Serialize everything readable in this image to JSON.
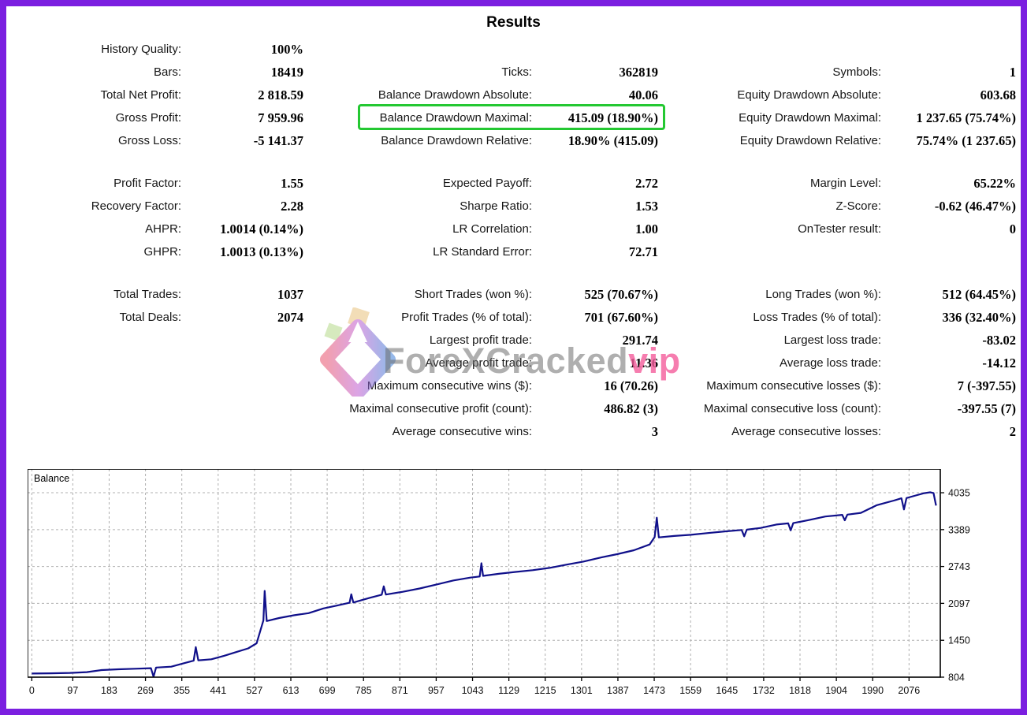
{
  "page": {
    "title": "Results",
    "frame_border_color": "#7b1fe0",
    "highlight_color": "#24c832"
  },
  "stats": {
    "highlighted_metric": "Balance Drawdown Maximal:",
    "highlighted_value": "415.09 (18.90%)",
    "rows": [
      [
        "History Quality:",
        "100%",
        "",
        "",
        "",
        ""
      ],
      [
        "Bars:",
        "18419",
        "Ticks:",
        "362819",
        "Symbols:",
        "1"
      ],
      [
        "Total Net Profit:",
        "2 818.59",
        "Balance Drawdown Absolute:",
        "40.06",
        "Equity Drawdown Absolute:",
        "603.68"
      ],
      [
        "Gross Profit:",
        "7 959.96",
        "Balance Drawdown Maximal:",
        "415.09 (18.90%)",
        "Equity Drawdown Maximal:",
        "1 237.65 (75.74%)"
      ],
      [
        "Gross Loss:",
        "-5 141.37",
        "Balance Drawdown Relative:",
        "18.90% (415.09)",
        "Equity Drawdown Relative:",
        "75.74% (1 237.65)"
      ],
      null,
      [
        "Profit Factor:",
        "1.55",
        "Expected Payoff:",
        "2.72",
        "Margin Level:",
        "65.22%"
      ],
      [
        "Recovery Factor:",
        "2.28",
        "Sharpe Ratio:",
        "1.53",
        "Z-Score:",
        "-0.62 (46.47%)"
      ],
      [
        "AHPR:",
        "1.0014 (0.14%)",
        "LR Correlation:",
        "1.00",
        "OnTester result:",
        "0"
      ],
      [
        "GHPR:",
        "1.0013 (0.13%)",
        "LR Standard Error:",
        "72.71",
        "",
        ""
      ],
      null,
      [
        "Total Trades:",
        "1037",
        "Short Trades (won %):",
        "525 (70.67%)",
        "Long Trades (won %):",
        "512 (64.45%)"
      ],
      [
        "Total Deals:",
        "2074",
        "Profit Trades (% of total):",
        "701 (67.60%)",
        "Loss Trades (% of total):",
        "336 (32.40%)"
      ],
      [
        "",
        "",
        "Largest profit trade:",
        "291.74",
        "Largest loss trade:",
        "-83.02"
      ],
      [
        "",
        "",
        "Average profit trade:",
        "11.36",
        "Average loss trade:",
        "-14.12"
      ],
      [
        "",
        "",
        "Maximum consecutive wins ($):",
        "16 (70.26)",
        "Maximum consecutive losses ($):",
        "7 (-397.55)"
      ],
      [
        "",
        "",
        "Maximal consecutive profit (count):",
        "486.82 (3)",
        "Maximal consecutive loss (count):",
        "-397.55 (7)"
      ],
      [
        "",
        "",
        "Average consecutive wins:",
        "3",
        "Average consecutive losses:",
        "2"
      ]
    ]
  },
  "watermark": {
    "brand": "ForeXCracked",
    "suffix": "vip",
    "brand_color": "#6e6e6e",
    "suffix_color": "#f45d9b"
  },
  "chart_data": {
    "type": "line",
    "title": "Balance",
    "legend_position": "top-left-inside",
    "grid": true,
    "line_color": "#10108a",
    "grid_color": "#b0b0b0",
    "axis_color": "#000000",
    "x_ticks": [
      0,
      97,
      183,
      269,
      355,
      441,
      527,
      613,
      699,
      785,
      871,
      957,
      1043,
      1129,
      1215,
      1301,
      1387,
      1473,
      1559,
      1645,
      1732,
      1818,
      1904,
      1990,
      2076
    ],
    "y_ticks": [
      804,
      1450,
      2097,
      2743,
      3389,
      4035
    ],
    "x_range": [
      -10,
      2150
    ],
    "y_range": [
      804,
      4450
    ],
    "xlabel": "",
    "ylabel": "",
    "series": [
      {
        "name": "Balance",
        "points": [
          [
            0,
            868
          ],
          [
            45,
            872
          ],
          [
            90,
            878
          ],
          [
            130,
            893
          ],
          [
            165,
            928
          ],
          [
            205,
            942
          ],
          [
            245,
            952
          ],
          [
            282,
            962
          ],
          [
            288,
            812
          ],
          [
            294,
            972
          ],
          [
            330,
            988
          ],
          [
            360,
            1048
          ],
          [
            383,
            1092
          ],
          [
            388,
            1330
          ],
          [
            394,
            1098
          ],
          [
            425,
            1118
          ],
          [
            455,
            1178
          ],
          [
            485,
            1248
          ],
          [
            512,
            1308
          ],
          [
            532,
            1398
          ],
          [
            548,
            1800
          ],
          [
            551,
            2315
          ],
          [
            556,
            1788
          ],
          [
            585,
            1840
          ],
          [
            620,
            1888
          ],
          [
            655,
            1925
          ],
          [
            690,
            2008
          ],
          [
            722,
            2058
          ],
          [
            752,
            2108
          ],
          [
            756,
            2255
          ],
          [
            761,
            2112
          ],
          [
            800,
            2195
          ],
          [
            828,
            2248
          ],
          [
            833,
            2395
          ],
          [
            838,
            2252
          ],
          [
            878,
            2300
          ],
          [
            918,
            2358
          ],
          [
            958,
            2428
          ],
          [
            998,
            2498
          ],
          [
            1038,
            2548
          ],
          [
            1060,
            2568
          ],
          [
            1064,
            2800
          ],
          [
            1068,
            2578
          ],
          [
            1105,
            2615
          ],
          [
            1145,
            2648
          ],
          [
            1185,
            2678
          ],
          [
            1225,
            2718
          ],
          [
            1265,
            2775
          ],
          [
            1305,
            2828
          ],
          [
            1345,
            2898
          ],
          [
            1385,
            2958
          ],
          [
            1425,
            3028
          ],
          [
            1462,
            3128
          ],
          [
            1474,
            3258
          ],
          [
            1479,
            3598
          ],
          [
            1484,
            3252
          ],
          [
            1520,
            3278
          ],
          [
            1560,
            3298
          ],
          [
            1600,
            3328
          ],
          [
            1640,
            3358
          ],
          [
            1680,
            3382
          ],
          [
            1686,
            3272
          ],
          [
            1692,
            3388
          ],
          [
            1725,
            3418
          ],
          [
            1762,
            3478
          ],
          [
            1790,
            3498
          ],
          [
            1796,
            3375
          ],
          [
            1802,
            3502
          ],
          [
            1840,
            3558
          ],
          [
            1878,
            3618
          ],
          [
            1918,
            3648
          ],
          [
            1924,
            3552
          ],
          [
            1930,
            3652
          ],
          [
            1962,
            3682
          ],
          [
            2000,
            3818
          ],
          [
            2040,
            3898
          ],
          [
            2058,
            3938
          ],
          [
            2064,
            3742
          ],
          [
            2070,
            3942
          ],
          [
            2092,
            3988
          ],
          [
            2112,
            4028
          ],
          [
            2126,
            4042
          ],
          [
            2134,
            4030
          ],
          [
            2140,
            3810
          ]
        ]
      }
    ]
  }
}
